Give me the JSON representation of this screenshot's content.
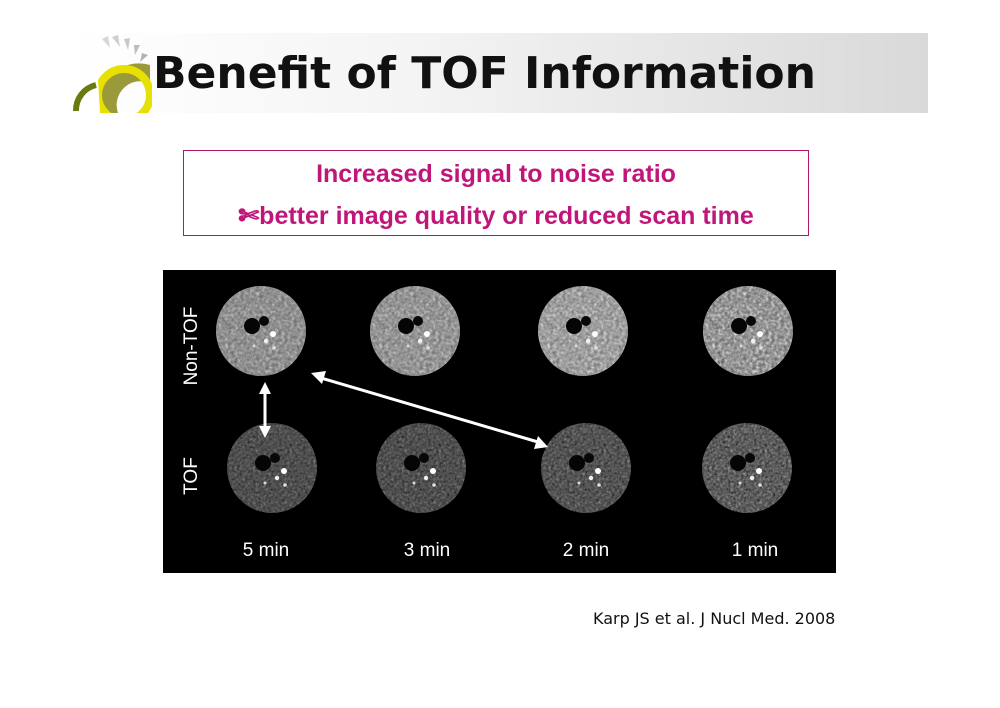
{
  "slide": {
    "title": "Benefit of TOF Information",
    "callout": {
      "line1": "Increased signal to noise ratio",
      "line2_symbol": "✄",
      "line2": "better image quality or reduced scan time"
    },
    "figure": {
      "row_labels": [
        "Non-TOF",
        "TOF"
      ],
      "scan_times": [
        "5 min",
        "3 min",
        "2 min",
        "1 min"
      ]
    },
    "citation": "Karp JS et al. J Nucl Med. 2008"
  },
  "colors": {
    "accent": "#c0167a",
    "title_bar_end": "#d9d9d9",
    "logo_yellow": "#e8e000",
    "figure_bg": "#000000"
  }
}
